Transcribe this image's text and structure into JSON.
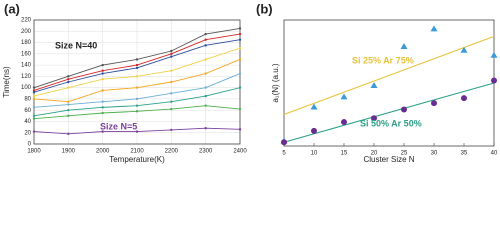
{
  "chart_data": [
    {
      "type": "line",
      "panel": "(a)",
      "xlabel": "Temperature(K)",
      "ylabel": "Time(ns)",
      "x": [
        1800,
        1900,
        2000,
        2100,
        2200,
        2300,
        2400
      ],
      "xlim": [
        1800,
        2400
      ],
      "xticks": [
        1800,
        1900,
        2000,
        2100,
        2200,
        2300,
        2400
      ],
      "ylim": [
        0,
        220
      ],
      "yticks": [
        0,
        20,
        40,
        60,
        80,
        100,
        120,
        140,
        160,
        180,
        200,
        220
      ],
      "grid": true,
      "series": [
        {
          "color": "#555555",
          "values": [
            100,
            120,
            140,
            150,
            165,
            195,
            205
          ]
        },
        {
          "color": "#d62728",
          "values": [
            95,
            115,
            130,
            140,
            160,
            185,
            195
          ]
        },
        {
          "color": "#2c4f9e",
          "values": [
            92,
            110,
            125,
            135,
            155,
            175,
            185
          ]
        },
        {
          "color": "#f0d24a",
          "values": [
            85,
            100,
            115,
            120,
            130,
            150,
            170
          ]
        },
        {
          "color": "#f5a623",
          "values": [
            80,
            75,
            95,
            100,
            110,
            125,
            150
          ]
        },
        {
          "color": "#6baed6",
          "values": [
            65,
            70,
            75,
            80,
            90,
            100,
            125
          ]
        },
        {
          "color": "#2ca089",
          "values": [
            50,
            60,
            65,
            68,
            75,
            85,
            100
          ]
        },
        {
          "color": "#4daf4a",
          "values": [
            45,
            50,
            55,
            58,
            62,
            68,
            62
          ]
        },
        {
          "color": "#7b3f9e",
          "values": [
            22,
            18,
            22,
            22,
            25,
            28,
            26
          ]
        }
      ],
      "annotations": [
        {
          "text": "Size N=40",
          "color": "#222222"
        },
        {
          "text": "Size N=5",
          "color": "#7b3f9e"
        }
      ]
    },
    {
      "type": "scatter",
      "panel": "(b)",
      "xlabel": "Cluster Size N",
      "ylabel": "a₁(N) (a.u.)",
      "x": [
        5,
        10,
        15,
        20,
        25,
        30,
        35,
        40
      ],
      "xlim": [
        5,
        40
      ],
      "xticks": [
        5,
        10,
        15,
        20,
        25,
        30,
        35,
        40
      ],
      "ylim": [
        0,
        100
      ],
      "series": [
        {
          "name": "Si 25% Ar 75%",
          "marker": "triangle",
          "color": "#3b9bd9",
          "label_color": "#e8c23a",
          "values": [
            4,
            31,
            39,
            48,
            79,
            93,
            76,
            72
          ]
        },
        {
          "name": "Si 50% Ar 50%",
          "marker": "circle",
          "color": "#6a2c8e",
          "label_color": "#2ca089",
          "values": [
            3,
            12,
            19,
            22,
            29,
            34,
            38,
            52
          ]
        }
      ],
      "fits": [
        {
          "color": "#e8c23a",
          "x": [
            5,
            40
          ],
          "values": [
            25,
            87
          ]
        },
        {
          "color": "#2ca089",
          "x": [
            5,
            40
          ],
          "values": [
            3,
            50
          ]
        }
      ]
    }
  ]
}
